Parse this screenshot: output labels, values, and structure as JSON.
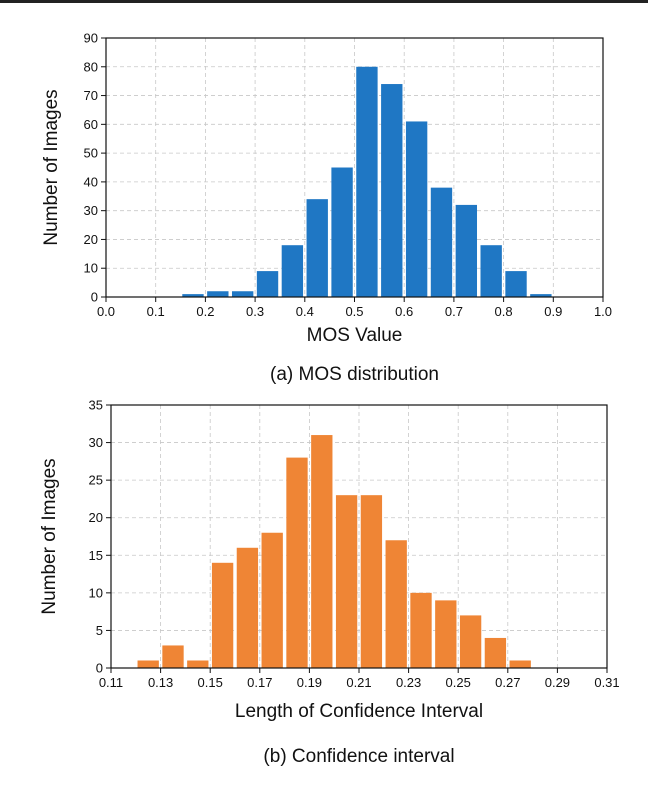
{
  "chart_data": [
    {
      "type": "bar",
      "caption": "(a) MOS distribution",
      "xlabel": "MOS Value",
      "ylabel": "Number of Images",
      "color": "#1f77c4",
      "xlim": [
        0.0,
        1.0
      ],
      "ylim": [
        0,
        90
      ],
      "bin_width": 0.05,
      "xticks": [
        "0.0",
        "0.1",
        "0.2",
        "0.3",
        "0.4",
        "0.5",
        "0.6",
        "0.7",
        "0.8",
        "0.9",
        "1.0"
      ],
      "yticks": [
        "0",
        "10",
        "20",
        "30",
        "40",
        "50",
        "60",
        "70",
        "80",
        "90"
      ],
      "bins": [
        0.15,
        0.2,
        0.25,
        0.3,
        0.35,
        0.4,
        0.45,
        0.5,
        0.55,
        0.6,
        0.65,
        0.7,
        0.75,
        0.8,
        0.85
      ],
      "values": [
        1,
        2,
        2,
        9,
        18,
        34,
        45,
        80,
        74,
        61,
        38,
        32,
        18,
        9,
        1
      ]
    },
    {
      "type": "bar",
      "caption": "(b) Confidence interval",
      "xlabel": "Length of Confidence Interval",
      "ylabel": "Number of Images",
      "color": "#ef8535",
      "xlim": [
        0.11,
        0.31
      ],
      "ylim": [
        0,
        35
      ],
      "bin_width": 0.01,
      "xticks": [
        "0.11",
        "0.13",
        "0.15",
        "0.17",
        "0.19",
        "0.21",
        "0.23",
        "0.25",
        "0.27",
        "0.29",
        "0.31"
      ],
      "yticks": [
        "0",
        "5",
        "10",
        "15",
        "20",
        "25",
        "30",
        "35"
      ],
      "bins": [
        0.12,
        0.13,
        0.14,
        0.15,
        0.16,
        0.17,
        0.18,
        0.19,
        0.2,
        0.21,
        0.22,
        0.23,
        0.24,
        0.25,
        0.26,
        0.27
      ],
      "values": [
        1,
        3,
        1,
        14,
        16,
        18,
        28,
        31,
        23,
        23,
        17,
        10,
        9,
        7,
        4,
        1
      ]
    }
  ]
}
